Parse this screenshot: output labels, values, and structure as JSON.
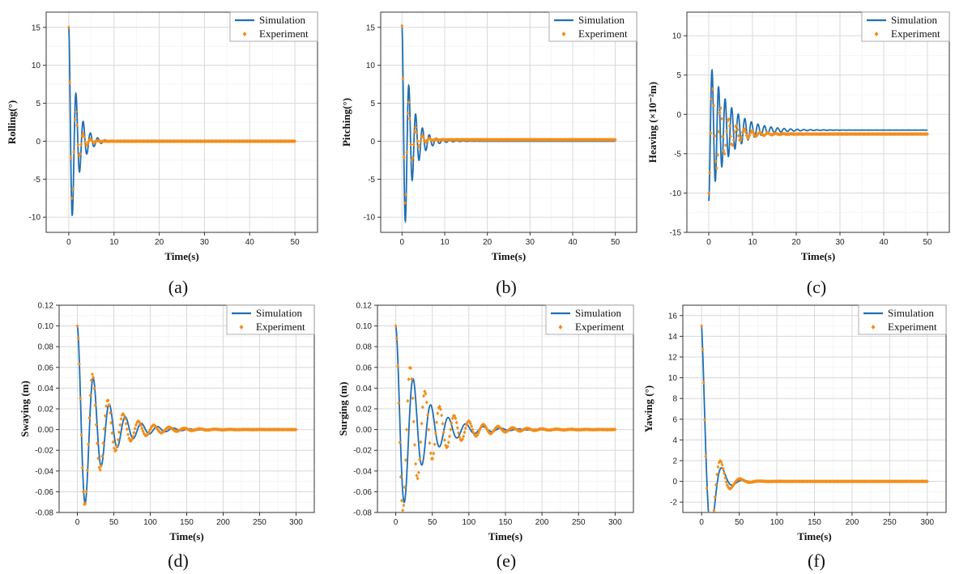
{
  "colors": {
    "simulation": "#1f6fb2",
    "experiment": "#f28e1c"
  },
  "chart_data": [
    {
      "type": "line",
      "caption": "(a)",
      "xlabel": "Time(s)",
      "ylabel": "Rolling(°)",
      "xlim": [
        -5,
        55
      ],
      "ylim": [
        -12,
        17
      ],
      "xticks": [
        0,
        10,
        20,
        30,
        40,
        50
      ],
      "yticks": [
        -10,
        -5,
        0,
        5,
        10,
        15
      ],
      "xtick_labels": [
        "0",
        "10",
        "20",
        "30",
        "40",
        "50"
      ],
      "ytick_labels": [
        "-10",
        "-5",
        "0",
        "5",
        "10",
        "15"
      ],
      "legend": [
        "Simulation",
        "Experiment"
      ],
      "legend_position": "top-right",
      "series": [
        {
          "name": "Simulation",
          "kind": "line",
          "t_end": 50,
          "model": {
            "amp": 15,
            "phase": 1.5708,
            "period": 1.6,
            "decay": 0.55,
            "offset": 0
          }
        },
        {
          "name": "Experiment",
          "kind": "markers",
          "t_end": 50,
          "model": {
            "amp": 15,
            "phase": 1.5708,
            "period": 1.6,
            "decay": 0.85,
            "offset": 0
          }
        }
      ]
    },
    {
      "type": "line",
      "caption": "(b)",
      "xlabel": "Time(s)",
      "ylabel": "Pitching(°)",
      "xlim": [
        -5,
        55
      ],
      "ylim": [
        -12,
        17
      ],
      "xticks": [
        0,
        10,
        20,
        30,
        40,
        50
      ],
      "yticks": [
        -10,
        -5,
        0,
        5,
        10,
        15
      ],
      "xtick_labels": [
        "0",
        "10",
        "20",
        "30",
        "40",
        "50"
      ],
      "ytick_labels": [
        "-10",
        "-5",
        "0",
        "5",
        "10",
        "15"
      ],
      "legend": [
        "Simulation",
        "Experiment"
      ],
      "legend_position": "top-right",
      "series": [
        {
          "name": "Simulation",
          "kind": "line",
          "t_end": 50,
          "model": {
            "amp": 15,
            "phase": 1.5708,
            "period": 1.6,
            "decay": 0.45,
            "offset": 0
          }
        },
        {
          "name": "Experiment",
          "kind": "markers",
          "t_end": 50,
          "model": {
            "amp": 15,
            "phase": 1.5708,
            "period": 1.6,
            "decay": 0.7,
            "offset": 0.2
          }
        }
      ]
    },
    {
      "type": "line",
      "caption": "(c)",
      "xlabel": "Time(s)",
      "ylabel": "Heaving (×10⁻²m)",
      "xlim": [
        -5,
        55
      ],
      "ylim": [
        -15,
        13
      ],
      "xticks": [
        0,
        10,
        20,
        30,
        40,
        50
      ],
      "yticks": [
        -15,
        -10,
        -5,
        0,
        5,
        10
      ],
      "xtick_labels": [
        "0",
        "10",
        "20",
        "30",
        "40",
        "50"
      ],
      "ytick_labels": [
        "-15",
        "-10",
        "-5",
        "0",
        "5",
        "10"
      ],
      "legend": [
        "Simulation",
        "Experiment"
      ],
      "legend_position": "top-right",
      "series": [
        {
          "name": "Simulation",
          "kind": "line",
          "t_end": 50,
          "model": {
            "amp": 9,
            "phase": -1.5708,
            "period": 1.5,
            "decay": 0.22,
            "offset": -2
          }
        },
        {
          "name": "Experiment",
          "kind": "markers",
          "t_end": 50,
          "model": {
            "amp": 7.5,
            "phase": -1.5708,
            "period": 1.8,
            "decay": 0.3,
            "offset": -2.5
          }
        }
      ]
    },
    {
      "type": "line",
      "caption": "(d)",
      "xlabel": "Time(s)",
      "ylabel": "Swaying (m)",
      "xlim": [
        -25,
        325
      ],
      "ylim": [
        -0.08,
        0.12
      ],
      "xticks": [
        0,
        50,
        100,
        150,
        200,
        250,
        300
      ],
      "yticks": [
        -0.08,
        -0.06,
        -0.04,
        -0.02,
        0,
        0.02,
        0.04,
        0.06,
        0.08,
        0.1,
        0.12
      ],
      "xtick_labels": [
        "0",
        "50",
        "100",
        "150",
        "200",
        "250",
        "300"
      ],
      "ytick_labels": [
        "-0.08",
        "-0.06",
        "-0.04",
        "-0.02",
        "0.00",
        "0.02",
        "0.04",
        "0.06",
        "0.08",
        "0.10",
        "0.12"
      ],
      "legend": [
        "Simulation",
        "Experiment"
      ],
      "legend_position": "top-right",
      "series": [
        {
          "name": "Simulation",
          "kind": "line",
          "t_end": 300,
          "model": {
            "amp": 0.1,
            "phase": 1.5708,
            "period": 22,
            "decay": 0.032,
            "offset": 0
          }
        },
        {
          "name": "Experiment",
          "kind": "markers",
          "t_end": 300,
          "model": {
            "amp": 0.1,
            "phase": 1.5708,
            "period": 21,
            "decay": 0.03,
            "offset": 0
          }
        }
      ]
    },
    {
      "type": "line",
      "caption": "(e)",
      "xlabel": "Time(s)",
      "ylabel": "Surging (m)",
      "xlim": [
        -25,
        325
      ],
      "ylim": [
        -0.08,
        0.12
      ],
      "xticks": [
        0,
        50,
        100,
        150,
        200,
        250,
        300
      ],
      "yticks": [
        -0.08,
        -0.06,
        -0.04,
        -0.02,
        0,
        0.02,
        0.04,
        0.06,
        0.08,
        0.1,
        0.12
      ],
      "xtick_labels": [
        "0",
        "50",
        "100",
        "150",
        "200",
        "250",
        "300"
      ],
      "ytick_labels": [
        "-0.08",
        "-0.06",
        "-0.04",
        "-0.02",
        "0.00",
        "0.02",
        "0.04",
        "0.06",
        "0.08",
        "0.10",
        "0.12"
      ],
      "legend": [
        "Simulation",
        "Experiment"
      ],
      "legend_position": "top-right",
      "series": [
        {
          "name": "Simulation",
          "kind": "line",
          "t_end": 300,
          "model": {
            "amp": 0.1,
            "phase": 1.5708,
            "period": 24,
            "decay": 0.03,
            "offset": 0
          }
        },
        {
          "name": "Experiment",
          "kind": "markers",
          "t_end": 300,
          "model": {
            "amp": 0.1,
            "phase": 1.5708,
            "period": 20,
            "decay": 0.025,
            "offset": 0
          }
        }
      ]
    },
    {
      "type": "line",
      "caption": "(f)",
      "xlabel": "Time(s)",
      "ylabel": "Yawing (°)",
      "xlim": [
        -25,
        325
      ],
      "ylim": [
        -3,
        17
      ],
      "xticks": [
        0,
        50,
        100,
        150,
        200,
        250,
        300
      ],
      "yticks": [
        -2,
        0,
        2,
        4,
        6,
        8,
        10,
        12,
        14,
        16
      ],
      "xtick_labels": [
        "0",
        "50",
        "100",
        "150",
        "200",
        "250",
        "300"
      ],
      "ytick_labels": [
        "-2",
        "0",
        "2",
        "4",
        "6",
        "8",
        "10",
        "12",
        "14",
        "16"
      ],
      "legend": [
        "Simulation",
        "Experiment"
      ],
      "legend_position": "top-right",
      "series": [
        {
          "name": "Simulation",
          "kind": "line",
          "t_end": 300,
          "model": {
            "amp": 15,
            "phase": 1.5708,
            "period": 28,
            "decay": 0.09,
            "offset": 0
          }
        },
        {
          "name": "Experiment",
          "kind": "markers",
          "t_end": 300,
          "model": {
            "amp": 15,
            "phase": 1.5708,
            "period": 26,
            "decay": 0.08,
            "offset": 0
          }
        }
      ]
    }
  ]
}
